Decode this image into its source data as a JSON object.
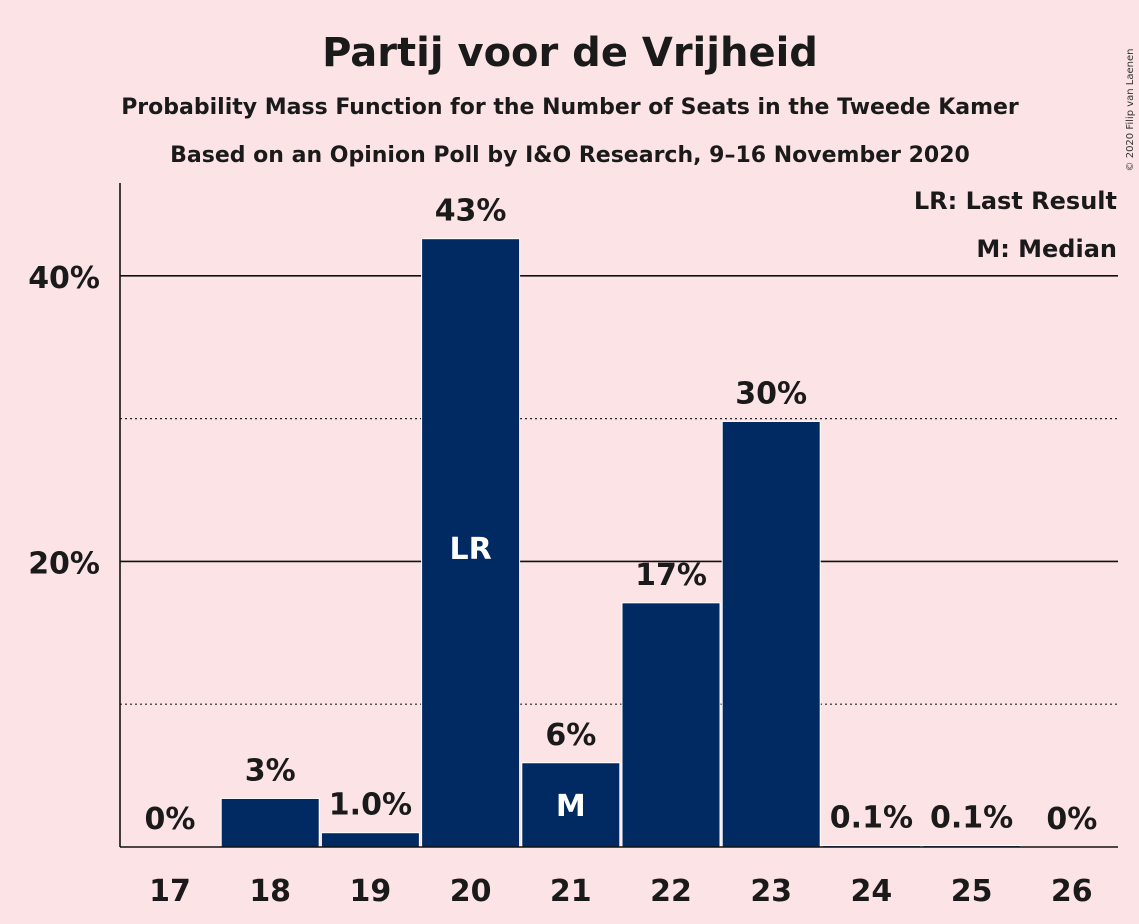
{
  "header": {
    "title": "Partij voor de Vrijheid",
    "subtitle1": "Probability Mass Function for the Number of Seats in the Tweede Kamer",
    "subtitle2": "Based on an Opinion Poll by I&O Research, 9–16 November 2020"
  },
  "legend": {
    "last_result": "LR: Last Result",
    "median": "M: Median"
  },
  "copyright": "© 2020 Filip van Laenen",
  "colors": {
    "bar": "#002a61",
    "background": "#fce4e6"
  },
  "chart_data": {
    "type": "bar",
    "categories": [
      "17",
      "18",
      "19",
      "20",
      "21",
      "22",
      "23",
      "24",
      "25",
      "26"
    ],
    "values": [
      0,
      3.4,
      1.0,
      42.6,
      5.9,
      17.1,
      29.8,
      0.1,
      0.1,
      0
    ],
    "data_labels": [
      "0%",
      "3%",
      "1.0%",
      "43%",
      "6%",
      "17%",
      "30%",
      "0.1%",
      "0.1%",
      "0%"
    ],
    "inbar_labels": [
      "",
      "",
      "",
      "LR",
      "M",
      "",
      "",
      "",
      "",
      ""
    ],
    "yticks": [
      {
        "value": 20,
        "label": "20%"
      },
      {
        "value": 40,
        "label": "40%"
      }
    ],
    "minor_gridlines": [
      10,
      30
    ],
    "ylim": [
      0,
      46.5
    ],
    "grid": true,
    "legend_position": "top-right"
  }
}
